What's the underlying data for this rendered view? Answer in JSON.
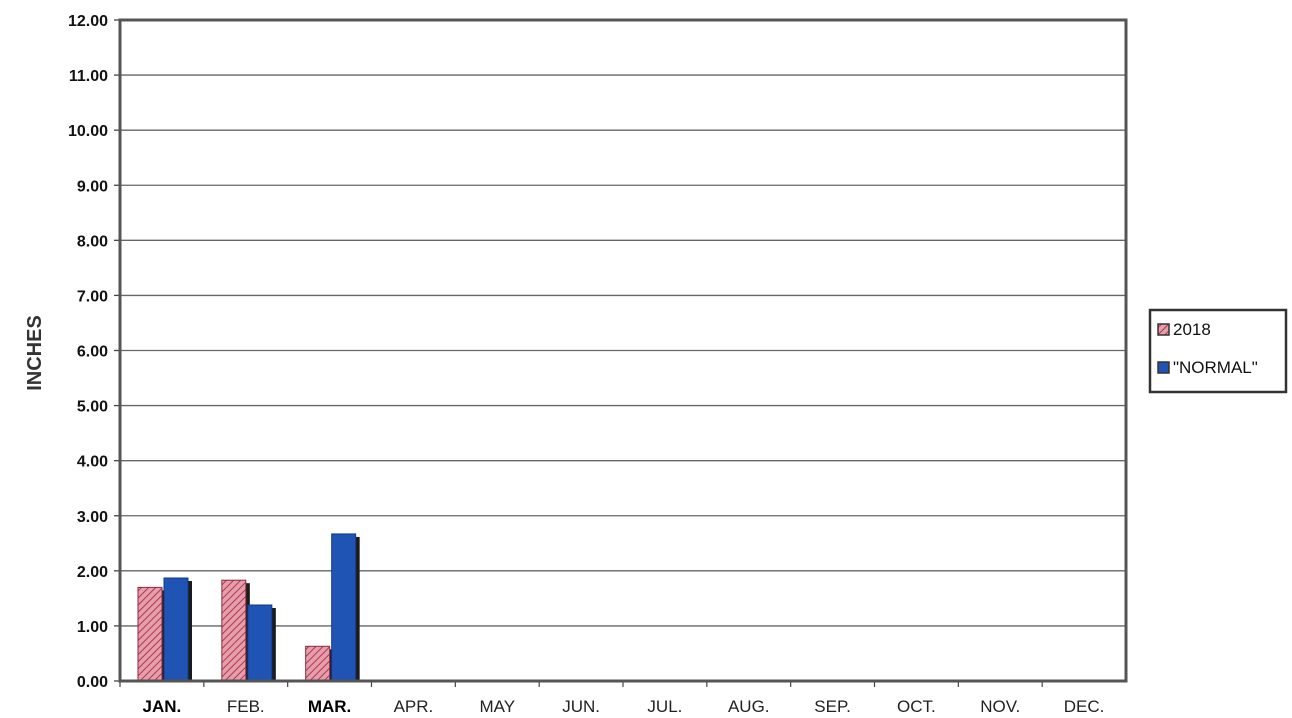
{
  "chart_data": {
    "type": "bar",
    "title": "",
    "xlabel": "",
    "ylabel": "INCHES",
    "ylim": [
      0,
      12
    ],
    "yticks": [
      "0.00",
      "1.00",
      "2.00",
      "3.00",
      "4.00",
      "5.00",
      "6.00",
      "7.00",
      "8.00",
      "9.00",
      "10.00",
      "11.00",
      "12.00"
    ],
    "categories": [
      "JAN.",
      "FEB.",
      "MAR.",
      "APR.",
      "MAY",
      "JUN.",
      "JUL.",
      "AUG.",
      "SEP.",
      "OCT.",
      "NOV.",
      "DEC."
    ],
    "series": [
      {
        "name": "2018",
        "color": "#d4687c",
        "pattern": "hatched",
        "values": [
          1.7,
          1.83,
          0.63,
          null,
          null,
          null,
          null,
          null,
          null,
          null,
          null,
          null
        ]
      },
      {
        "name": "\"NORMAL\"",
        "color": "#1f54b5",
        "pattern": "solid",
        "values": [
          1.87,
          1.38,
          2.67,
          null,
          null,
          null,
          null,
          null,
          null,
          null,
          null,
          null
        ]
      }
    ],
    "grid": true,
    "legend": "right"
  }
}
